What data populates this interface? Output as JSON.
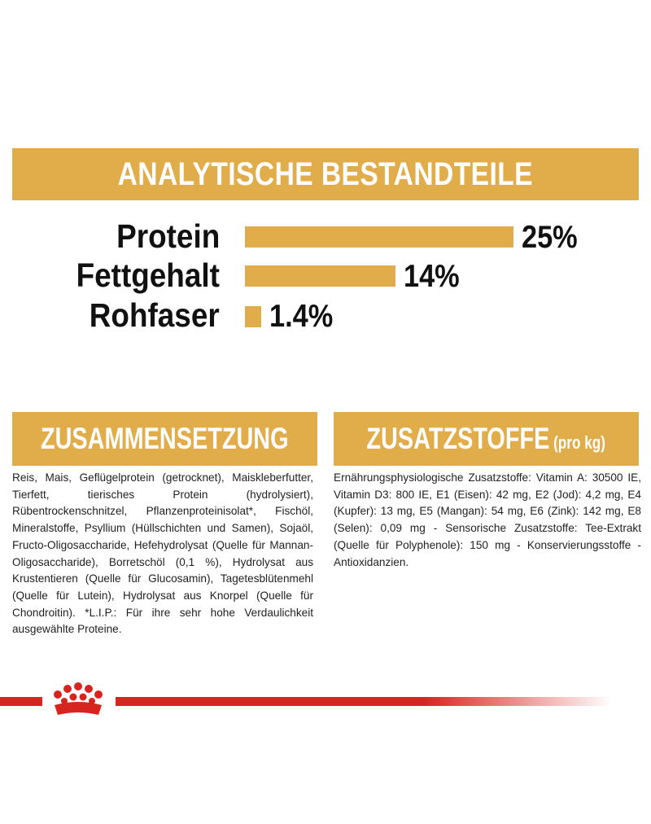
{
  "analysis": {
    "title": "ANALYTISCHE BESTANDTEILE",
    "rows": [
      {
        "label": "Protein",
        "value": "25%",
        "fraction": 1.0
      },
      {
        "label": "Fettgehalt",
        "value": "14%",
        "fraction": 0.56
      },
      {
        "label": "Rohfaser",
        "value": "1.4%",
        "fraction": 0.06
      }
    ]
  },
  "composition": {
    "title": "ZUSAMMENSETZUNG",
    "text": "Reis, Mais, Geflügelprotein (getrocknet), Maiskleberfutter, Tierfett, tierisches Protein (hydrolysiert), Rübentrockenschnitzel, Pflanzenproteinisolat*, Fischöl, Mineralstoffe, Psyllium (Hüllschichten und Samen), Sojaöl, Fructo-Oligosaccharide, Hefehydrolysat (Quelle für Mannan-Oligosaccharide), Borretschöl (0,1 %), Hydrolysat aus Krustentieren (Quelle für Glucosamin), Tagetesblütenmehl (Quelle für Lutein), Hydrolysat aus Knorpel (Quelle für Chondroitin). *L.I.P.: Für ihre sehr hohe Verdaulichkeit ausgewählte Proteine."
  },
  "additives": {
    "title": "ZUSATZSTOFFE",
    "subtitle": "(pro kg)",
    "text": "Ernährungsphysiologische Zusatzstoffe: Vitamin A: 30500 IE, Vitamin D3: 800 IE, E1 (Eisen): 42 mg, E2 (Jod): 4,2 mg, E4 (Kupfer): 13 mg, E5 (Mangan): 54 mg, E6 (Zink): 142 mg, E8 (Selen): 0,09 mg - Sensorische Zusatzstoffe: Tee-Extrakt (Quelle für Polyphenole): 150 mg - Konservierungsstoffe - Antioxidanzien."
  },
  "colors": {
    "accent": "#e1ad4b",
    "brand_red": "#d6251f",
    "text": "#1a1a1a"
  },
  "icons": {
    "brand_logo": "crown-icon"
  }
}
